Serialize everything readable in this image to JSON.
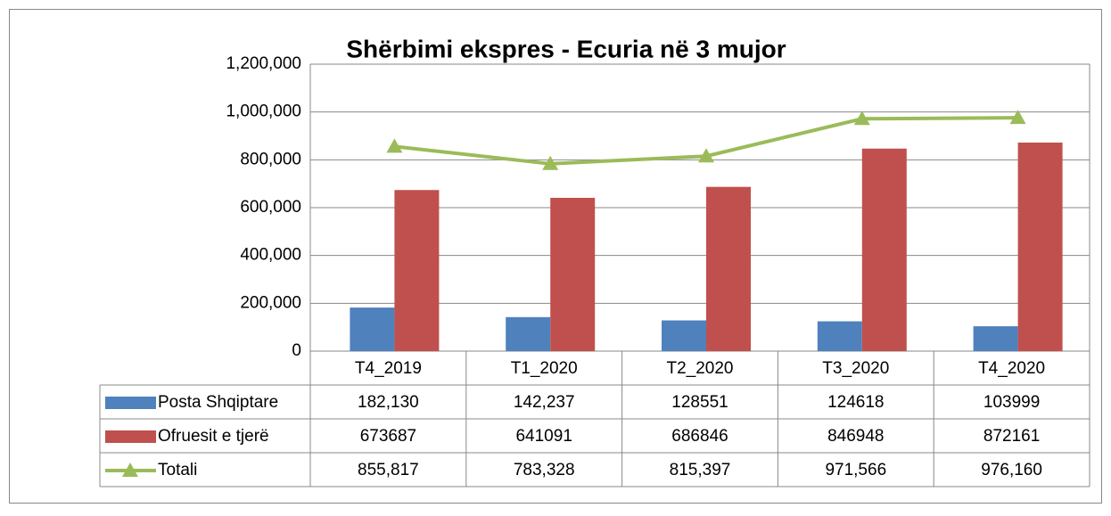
{
  "chart_data": {
    "type": "bar",
    "title": "Shërbimi ekspres - Ecuria në 3 mujor",
    "categories": [
      "T4_2019",
      "T1_2020",
      "T2_2020",
      "T3_2020",
      "T4_2020"
    ],
    "series": [
      {
        "name": "Posta Shqiptare",
        "color": "#4f81bd",
        "type": "bar",
        "values": [
          182130,
          142237,
          128551,
          124618,
          103999
        ],
        "value_labels": [
          "182,130",
          "142,237",
          "128551",
          "124618",
          "103999"
        ]
      },
      {
        "name": "Ofruesit e tjerë",
        "color": "#c0504d",
        "type": "bar",
        "values": [
          673687,
          641091,
          686846,
          846948,
          872161
        ]
      },
      {
        "name": "Totali",
        "color": "#9bbb59",
        "type": "line",
        "values": [
          855817,
          783328,
          815397,
          971566,
          976160
        ],
        "value_labels": [
          "855,817",
          "783,328",
          "815,397",
          "971,566",
          "976,160"
        ]
      }
    ],
    "ylim": [
      0,
      1200000
    ],
    "yticks": [
      0,
      {
        "value": 200000,
        "label": "200,000"
      },
      {
        "value": 400000,
        "label": "400,000"
      },
      {
        "value": 600000,
        "label": "600,000"
      },
      {
        "value": 800000,
        "label": "800,000"
      },
      {
        "value": 1000000,
        "label": "1,000,000"
      },
      {
        "value": 1200000,
        "label": "1,200,000"
      }
    ],
    "grid": true
  }
}
